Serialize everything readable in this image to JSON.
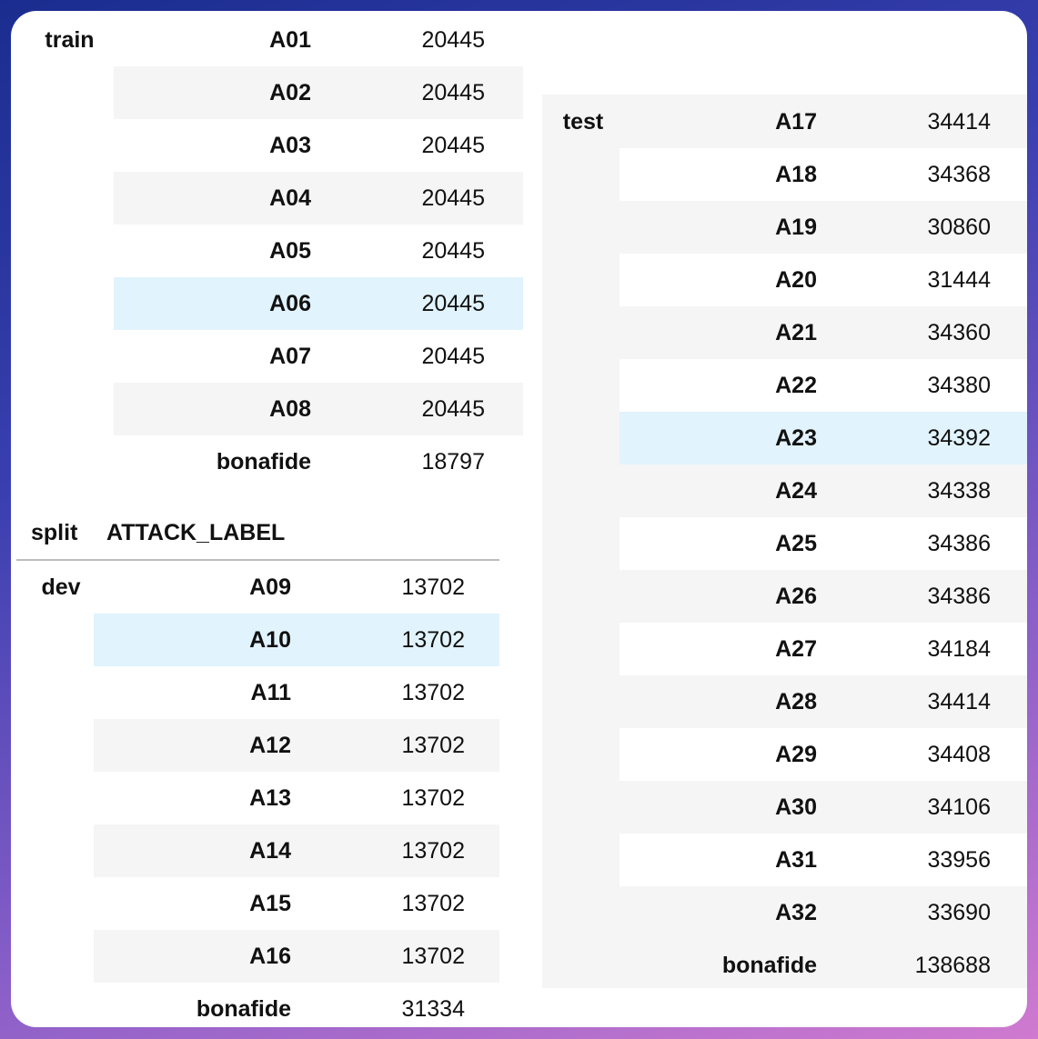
{
  "index_headers": [
    "split",
    "ATTACK_LABEL"
  ],
  "groups": [
    {
      "split": "train",
      "rows": [
        {
          "label": "A01",
          "value": "20445"
        },
        {
          "label": "A02",
          "value": "20445"
        },
        {
          "label": "A03",
          "value": "20445"
        },
        {
          "label": "A04",
          "value": "20445"
        },
        {
          "label": "A05",
          "value": "20445"
        },
        {
          "label": "A06",
          "value": "20445"
        },
        {
          "label": "A07",
          "value": "20445"
        },
        {
          "label": "A08",
          "value": "20445"
        },
        {
          "label": "bonafide",
          "value": "18797"
        }
      ]
    },
    {
      "split": "dev",
      "rows": [
        {
          "label": "A09",
          "value": "13702"
        },
        {
          "label": "A10",
          "value": "13702"
        },
        {
          "label": "A11",
          "value": "13702"
        },
        {
          "label": "A12",
          "value": "13702"
        },
        {
          "label": "A13",
          "value": "13702"
        },
        {
          "label": "A14",
          "value": "13702"
        },
        {
          "label": "A15",
          "value": "13702"
        },
        {
          "label": "A16",
          "value": "13702"
        },
        {
          "label": "bonafide",
          "value": "31334"
        }
      ]
    },
    {
      "split": "test",
      "rows": [
        {
          "label": "A17",
          "value": "34414"
        },
        {
          "label": "A18",
          "value": "34368"
        },
        {
          "label": "A19",
          "value": "30860"
        },
        {
          "label": "A20",
          "value": "31444"
        },
        {
          "label": "A21",
          "value": "34360"
        },
        {
          "label": "A22",
          "value": "34380"
        },
        {
          "label": "A23",
          "value": "34392"
        },
        {
          "label": "A24",
          "value": "34338"
        },
        {
          "label": "A25",
          "value": "34386"
        },
        {
          "label": "A26",
          "value": "34386"
        },
        {
          "label": "A27",
          "value": "34184"
        },
        {
          "label": "A28",
          "value": "34414"
        },
        {
          "label": "A29",
          "value": "34408"
        },
        {
          "label": "A30",
          "value": "34106"
        },
        {
          "label": "A31",
          "value": "33956"
        },
        {
          "label": "A32",
          "value": "33690"
        },
        {
          "label": "bonafide",
          "value": "138688"
        }
      ]
    }
  ],
  "highlight_color": "#e1f3fc",
  "stripe_color": "#f5f5f5"
}
